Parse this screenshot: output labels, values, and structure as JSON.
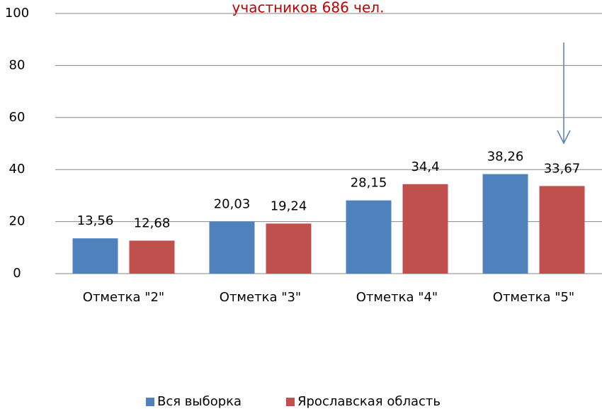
{
  "chart_data": {
    "type": "bar",
    "title": "участников 686 чел.",
    "categories": [
      "Отметка \"2\"",
      "Отметка \"3\"",
      "Отметка \"4\"",
      "Отметка \"5\""
    ],
    "series": [
      {
        "name": "Вся выборка",
        "color": "#4f81bd",
        "values": [
          13.56,
          20.03,
          28.15,
          38.26
        ],
        "value_labels": [
          "13,56",
          "20,03",
          "28,15",
          "38,26"
        ]
      },
      {
        "name": "Ярославская область",
        "color": "#c0504d",
        "values": [
          12.68,
          19.24,
          34.4,
          33.67
        ],
        "value_labels": [
          "12,68",
          "19,24",
          "34,4",
          "33,67"
        ]
      }
    ],
    "ylim": [
      0,
      100
    ],
    "yticks": [
      0,
      20,
      40,
      60,
      80,
      100
    ],
    "grid": true,
    "legend": "bottom"
  }
}
